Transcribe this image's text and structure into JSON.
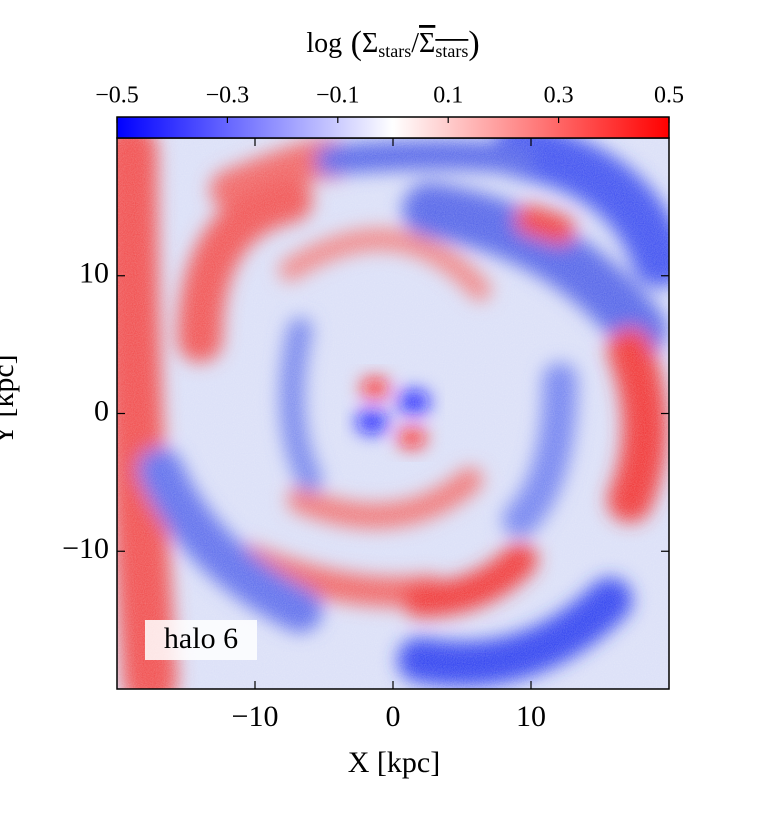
{
  "chart_data": {
    "type": "heatmap",
    "colorbar_label": {
      "function": "log",
      "symbol": "Σ",
      "subscript": "stars"
    },
    "colormap_colors": [
      "#0000ff",
      "#ffffff",
      "#ff0000"
    ],
    "zlim": [
      -0.5,
      0.5
    ],
    "zticks": [
      {
        "value": -0.5,
        "label": "−0.5"
      },
      {
        "value": -0.3,
        "label": "−0.3"
      },
      {
        "value": -0.1,
        "label": "−0.1"
      },
      0.1,
      0.3,
      0.5
    ],
    "x_label": "X [kpc]",
    "y_label": "Y [kpc]",
    "xlim": [
      -20,
      20
    ],
    "ylim": [
      -20,
      20
    ],
    "xticks": [
      {
        "value": -10,
        "label": "−10"
      },
      0,
      10
    ],
    "yticks": [
      {
        "value": -10,
        "label": "−10"
      },
      0,
      10
    ],
    "annotation": "halo 6"
  }
}
